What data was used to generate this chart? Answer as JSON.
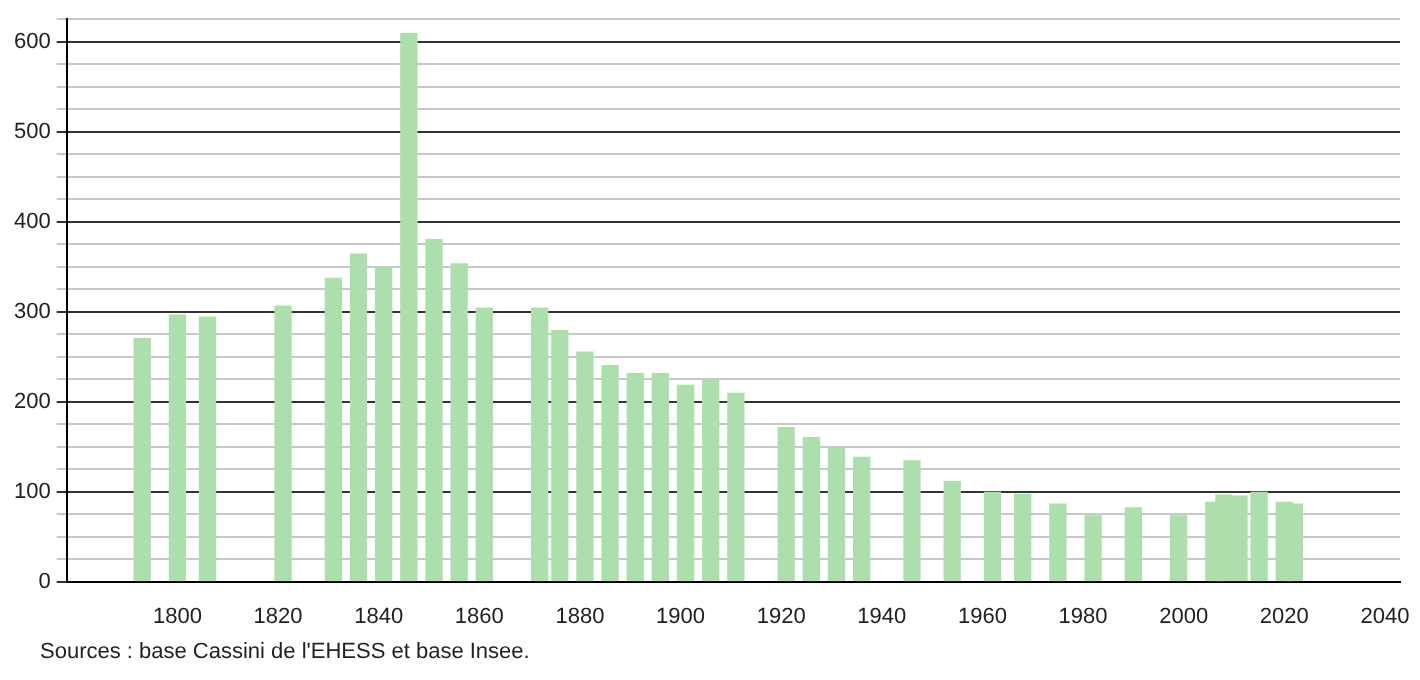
{
  "chart_data": {
    "type": "bar",
    "color": "#addfad",
    "grid": "y",
    "x": [
      1793,
      1800,
      1806,
      1821,
      1831,
      1836,
      1841,
      1846,
      1851,
      1856,
      1861,
      1872,
      1876,
      1881,
      1886,
      1891,
      1896,
      1901,
      1906,
      1911,
      1921,
      1926,
      1931,
      1936,
      1946,
      1954,
      1962,
      1968,
      1975,
      1982,
      1990,
      1999,
      2006,
      2008,
      2011,
      2015,
      2020,
      2022
    ],
    "values": [
      270,
      296,
      294,
      306,
      337,
      364,
      349,
      609,
      380,
      353,
      304,
      304,
      279,
      255,
      240,
      231,
      231,
      218,
      224,
      209,
      171,
      160,
      148,
      138,
      134,
      111,
      99,
      97,
      86,
      73,
      82,
      73,
      88,
      96,
      95,
      99,
      88,
      86
    ],
    "xlim": [
      1778,
      2043
    ],
    "xticks": [
      1800,
      1820,
      1840,
      1860,
      1880,
      1900,
      1920,
      1940,
      1960,
      1980,
      2000,
      2020,
      2040
    ],
    "ylim": [
      0,
      625
    ],
    "yticks": [
      0,
      {
        "value": 25,
        "label": null
      },
      {
        "value": 50,
        "label": null
      },
      {
        "value": 75,
        "label": null
      },
      100,
      {
        "value": 125,
        "label": null
      },
      {
        "value": 150,
        "label": null
      },
      {
        "value": 175,
        "label": null
      },
      200,
      {
        "value": 225,
        "label": null
      },
      {
        "value": 250,
        "label": null
      },
      {
        "value": 275,
        "label": null
      },
      300,
      {
        "value": 325,
        "label": null
      },
      {
        "value": 350,
        "label": null
      },
      {
        "value": 375,
        "label": null
      },
      400,
      {
        "value": 425,
        "label": null
      },
      {
        "value": 450,
        "label": null
      },
      {
        "value": 475,
        "label": null
      },
      500,
      {
        "value": 525,
        "label": null
      },
      {
        "value": 550,
        "label": null
      },
      {
        "value": 575,
        "label": null
      },
      600,
      {
        "value": 625,
        "label": null
      }
    ],
    "annotations": [
      "Sources : base Cassini de l'EHESS et base Insee."
    ]
  }
}
